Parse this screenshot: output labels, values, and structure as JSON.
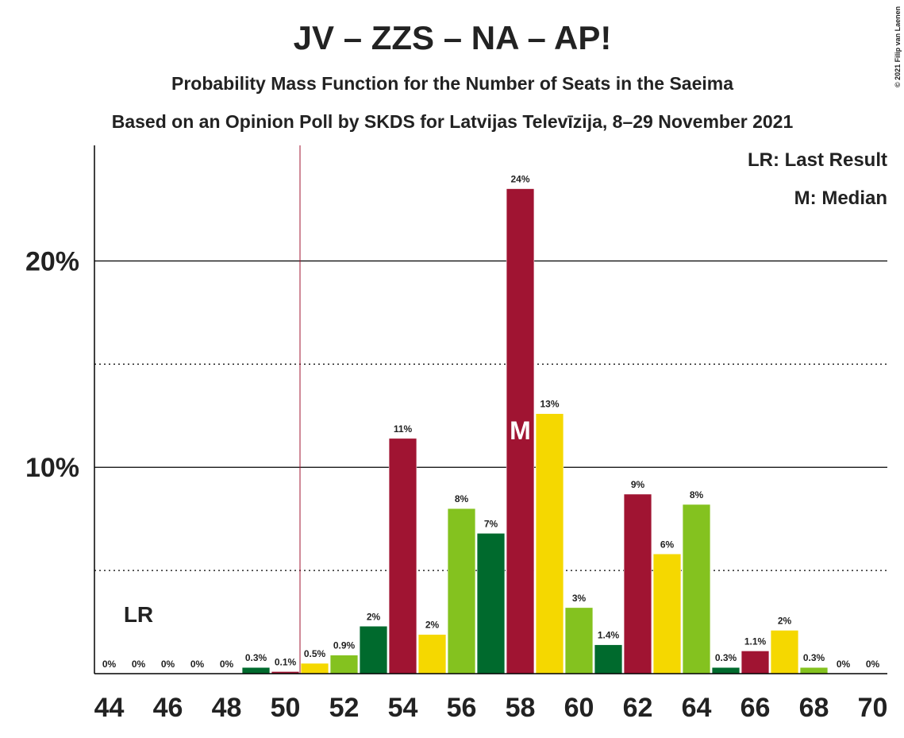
{
  "chart_data": {
    "type": "bar",
    "title": "JV – ZZS – NA – AP!",
    "subtitle": "Probability Mass Function for the Number of Seats in the Saeima",
    "subtitle2": "Based on an Opinion Poll by SKDS for Latvijas Televīzija, 8–29 November 2021",
    "copyright": "© 2021 Filip van Laenen",
    "x": [
      44,
      45,
      46,
      47,
      48,
      49,
      50,
      51,
      52,
      53,
      54,
      55,
      56,
      57,
      58,
      59,
      60,
      61,
      62,
      63,
      64,
      65,
      66,
      67,
      68,
      69,
      70
    ],
    "values": [
      0,
      0,
      0,
      0,
      0,
      0.3,
      0.1,
      0.5,
      0.9,
      2.3,
      11.4,
      1.9,
      8.0,
      6.8,
      23.5,
      12.6,
      3.2,
      1.4,
      8.7,
      5.8,
      8.2,
      0.3,
      1.1,
      2.1,
      0.3,
      0,
      0
    ],
    "value_labels": [
      "0%",
      "0%",
      "0%",
      "0%",
      "0%",
      "0.3%",
      "0.1%",
      "0.5%",
      "0.9%",
      "2%",
      "11%",
      "2%",
      "8%",
      "7%",
      "24%",
      "13%",
      "3%",
      "1.4%",
      "9%",
      "6%",
      "8%",
      "0.3%",
      "1.1%",
      "2%",
      "0.3%",
      "0%",
      "0%"
    ],
    "colors": [
      "#a01432",
      "#f5d800",
      "#84c21f",
      "#006a2d",
      "#a01432",
      "#006a2d",
      "#a01432",
      "#f5d800",
      "#84c21f",
      "#006a2d",
      "#a01432",
      "#f5d800",
      "#84c21f",
      "#006a2d",
      "#a01432",
      "#f5d800",
      "#84c21f",
      "#006a2d",
      "#a01432",
      "#f5d800",
      "#84c21f",
      "#006a2d",
      "#a01432",
      "#f5d800",
      "#84c21f",
      "#006a2d",
      "#a01432"
    ],
    "xlim": [
      43.5,
      70.5
    ],
    "xticks": [
      44,
      46,
      48,
      50,
      52,
      54,
      56,
      58,
      60,
      62,
      64,
      66,
      68,
      70
    ],
    "ylim": [
      0,
      25.6
    ],
    "yticks": [
      {
        "value": 10,
        "label": "10%"
      },
      {
        "value": 20,
        "label": "20%"
      }
    ],
    "minor_yticks": [
      5,
      15
    ],
    "majority_line": 50.5,
    "last_result": 45,
    "last_result_label": "LR",
    "median": 58,
    "median_label": "M",
    "legend": [
      "LR: Last Result",
      "M: Median"
    ]
  }
}
